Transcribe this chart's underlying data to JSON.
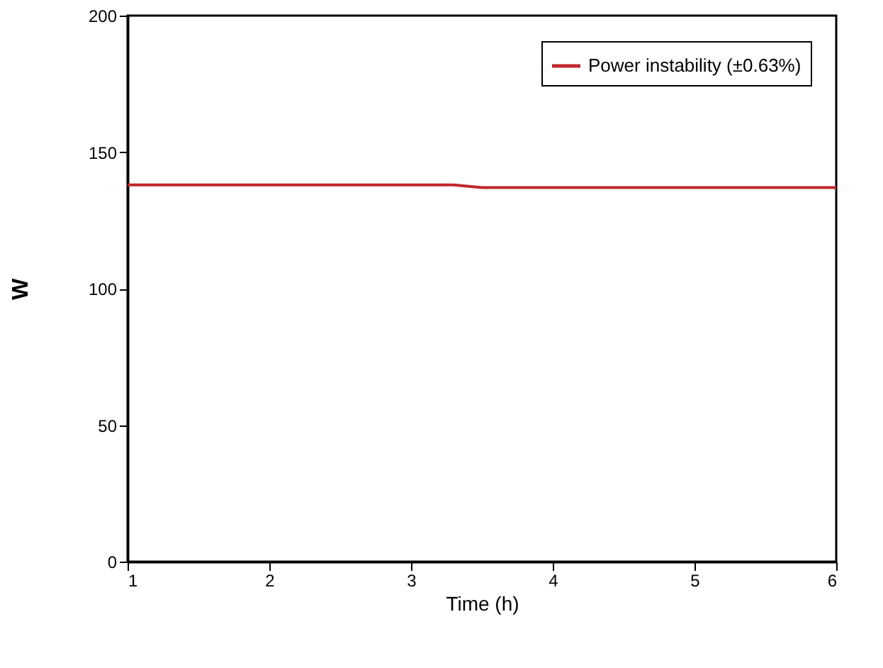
{
  "chart_data": {
    "type": "line",
    "xlabel": "Time (h)",
    "ylabel": "W",
    "x": [
      1,
      1.5,
      2,
      2.5,
      3,
      3.3,
      3.5,
      3.75,
      4,
      4.5,
      5,
      5.5,
      6
    ],
    "series": [
      {
        "name": "Power instability (±0.63%)",
        "color": "#c0272d",
        "values": [
          138,
          138,
          138,
          138,
          138,
          138,
          137,
          137,
          137,
          137,
          137,
          137,
          137
        ]
      }
    ],
    "xlim": [
      1,
      6
    ],
    "xticks": [
      1,
      2,
      3,
      4,
      5,
      6
    ],
    "ylim": [
      0,
      200
    ],
    "yticks": [
      0,
      50,
      100,
      150,
      200
    ],
    "grid": false,
    "legend": "top right",
    "marker": "none",
    "line_style": "solid"
  }
}
